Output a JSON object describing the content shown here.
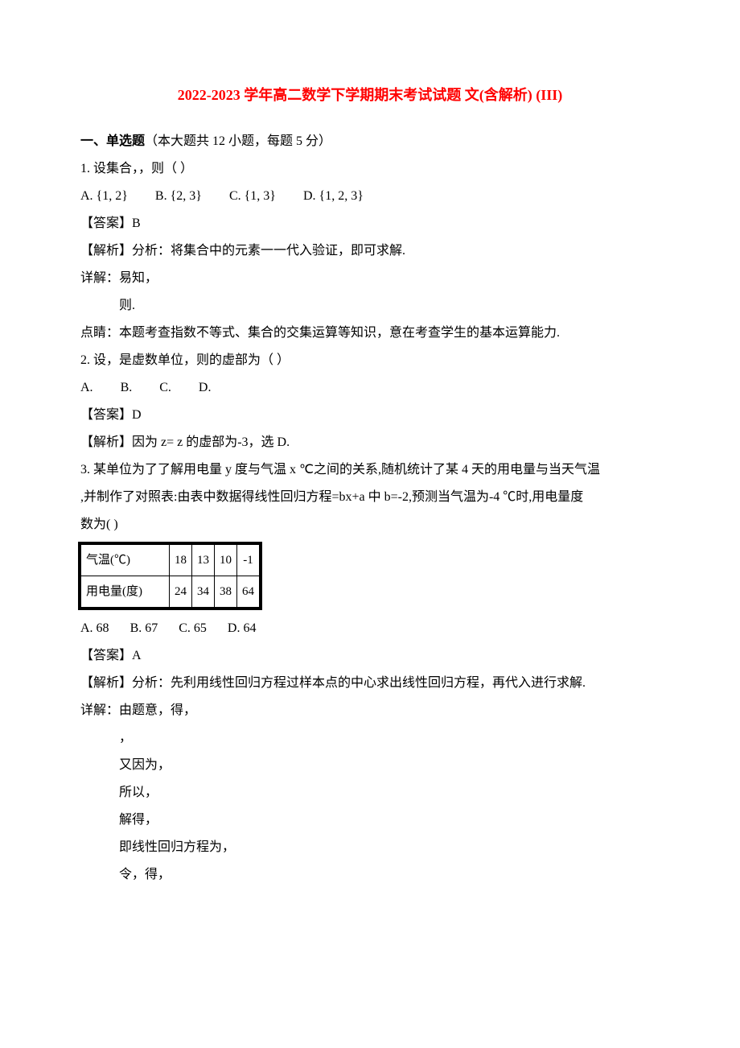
{
  "title": "2022-2023 学年高二数学下学期期末考试试题 文(含解析) (III)",
  "title_color": "#ff0000",
  "section": {
    "label_bold": "一、单选题",
    "label_rest": "（本大题共 12 小题，每题 5 分）"
  },
  "q1": {
    "stem": "1.  设集合，，则（    ）",
    "opts": {
      "A": "A.  {1, 2}",
      "B": "B.  {2, 3}",
      "C": "C.  {1, 3}",
      "D": "D.  {1, 2, 3}"
    },
    "ans": "【答案】B",
    "expl1": "【解析】分析：将集合中的元素一一代入验证，即可求解.",
    "expl2": "详解：易知，",
    "expl3": "则.",
    "expl4": "点睛：本题考查指数不等式、集合的交集运算等知识，意在考查学生的基本运算能力."
  },
  "q2": {
    "stem": "2.  设，是虚数单位，则的虚部为（    ）",
    "opts": {
      "A": "A.  ",
      "B": "B.  ",
      "C": "C.  ",
      "D": "D.  "
    },
    "ans": "【答案】D",
    "expl1": "【解析】因为 z=  z 的虚部为-3，选 D."
  },
  "q3": {
    "stem1": "3.  某单位为了了解用电量 y 度与气温 x ℃之间的关系,随机统计了某 4 天的用电量与当天气温",
    "stem2": ",并制作了对照表:由表中数据得线性回归方程=bx+a 中 b=-2,预测当气温为-4 ℃时,用电量度",
    "stem3": "数为(    )",
    "table": {
      "row1_label": "气温(℃)",
      "row1": [
        "18",
        "13",
        "10",
        "-1"
      ],
      "row2_label": "用电量(度)",
      "row2": [
        "24",
        "34",
        "38",
        "64"
      ]
    },
    "opts": {
      "A": "A.  68",
      "B": "B.  67",
      "C": "C.  65",
      "D": "D.  64"
    },
    "ans": "【答案】A",
    "expl1": "【解析】分析：先利用线性回归方程过样本点的中心求出线性回归方程，再代入进行求解.",
    "expl2": "详解：由题意，得，",
    "expl3": "，",
    "expl4": "又因为，",
    "expl5": "所以，",
    "expl6": "解得，",
    "expl7": "即线性回归方程为，",
    "expl8": "令，得，"
  }
}
